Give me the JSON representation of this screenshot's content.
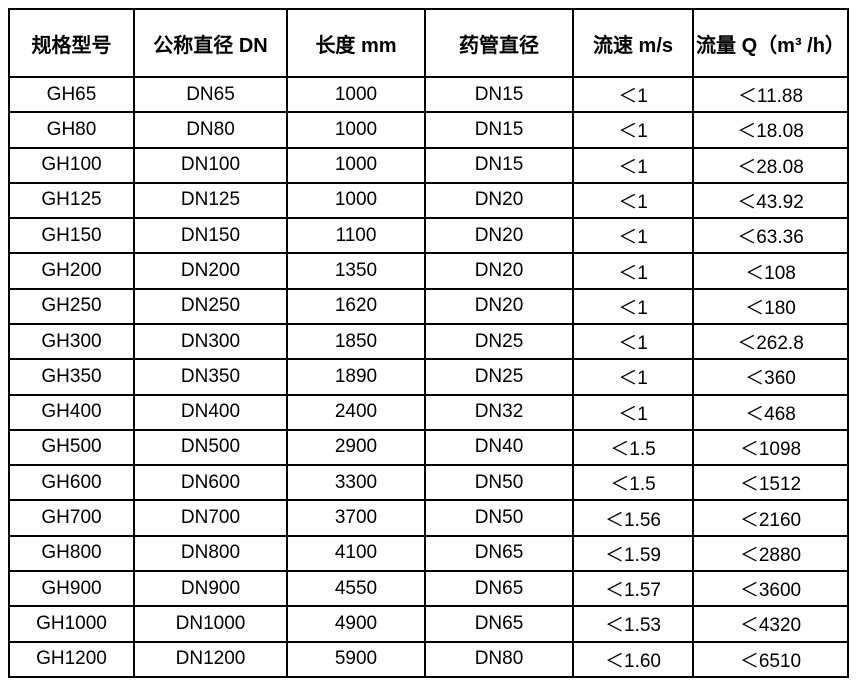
{
  "table": {
    "columns": [
      {
        "key": "model",
        "label": "规格型号"
      },
      {
        "key": "dn",
        "label": "公称直径 DN"
      },
      {
        "key": "length",
        "label": "长度 mm"
      },
      {
        "key": "pipe",
        "label": "药管直径"
      },
      {
        "key": "velocity",
        "label": "流速 m/s"
      },
      {
        "key": "flow",
        "label": "流量 Q（m³ /h）"
      }
    ],
    "rows": [
      [
        "GH65",
        "DN65",
        "1000",
        "DN15",
        "＜1",
        "＜11.88"
      ],
      [
        "GH80",
        "DN80",
        "1000",
        "DN15",
        "＜1",
        "＜18.08"
      ],
      [
        "GH100",
        "DN100",
        "1000",
        "DN15",
        "＜1",
        "＜28.08"
      ],
      [
        "GH125",
        "DN125",
        "1000",
        "DN20",
        "＜1",
        "＜43.92"
      ],
      [
        "GH150",
        "DN150",
        "1100",
        "DN20",
        "＜1",
        "＜63.36"
      ],
      [
        "GH200",
        "DN200",
        "1350",
        "DN20",
        "＜1",
        "＜108"
      ],
      [
        "GH250",
        "DN250",
        "1620",
        "DN20",
        "＜1",
        "＜180"
      ],
      [
        "GH300",
        "DN300",
        "1850",
        "DN25",
        "＜1",
        "＜262.8"
      ],
      [
        "GH350",
        "DN350",
        "1890",
        "DN25",
        "＜1",
        "＜360"
      ],
      [
        "GH400",
        "DN400",
        "2400",
        "DN32",
        "＜1",
        "＜468"
      ],
      [
        "GH500",
        "DN500",
        "2900",
        "DN40",
        "＜1.5",
        "＜1098"
      ],
      [
        "GH600",
        "DN600",
        "3300",
        "DN50",
        "＜1.5",
        "＜1512"
      ],
      [
        "GH700",
        "DN700",
        "3700",
        "DN50",
        "＜1.56",
        "＜2160"
      ],
      [
        "GH800",
        "DN800",
        "4100",
        "DN65",
        "＜1.59",
        "＜2880"
      ],
      [
        "GH900",
        "DN900",
        "4550",
        "DN65",
        "＜1.57",
        "＜3600"
      ],
      [
        "GH1000",
        "DN1000",
        "4900",
        "DN65",
        "＜1.53",
        "＜4320"
      ],
      [
        "GH1200",
        "DN1200",
        "5900",
        "DN80",
        "＜1.60",
        "＜6510"
      ]
    ],
    "colors": {
      "border": "#000000",
      "text": "#000000",
      "background": "#ffffff"
    }
  }
}
